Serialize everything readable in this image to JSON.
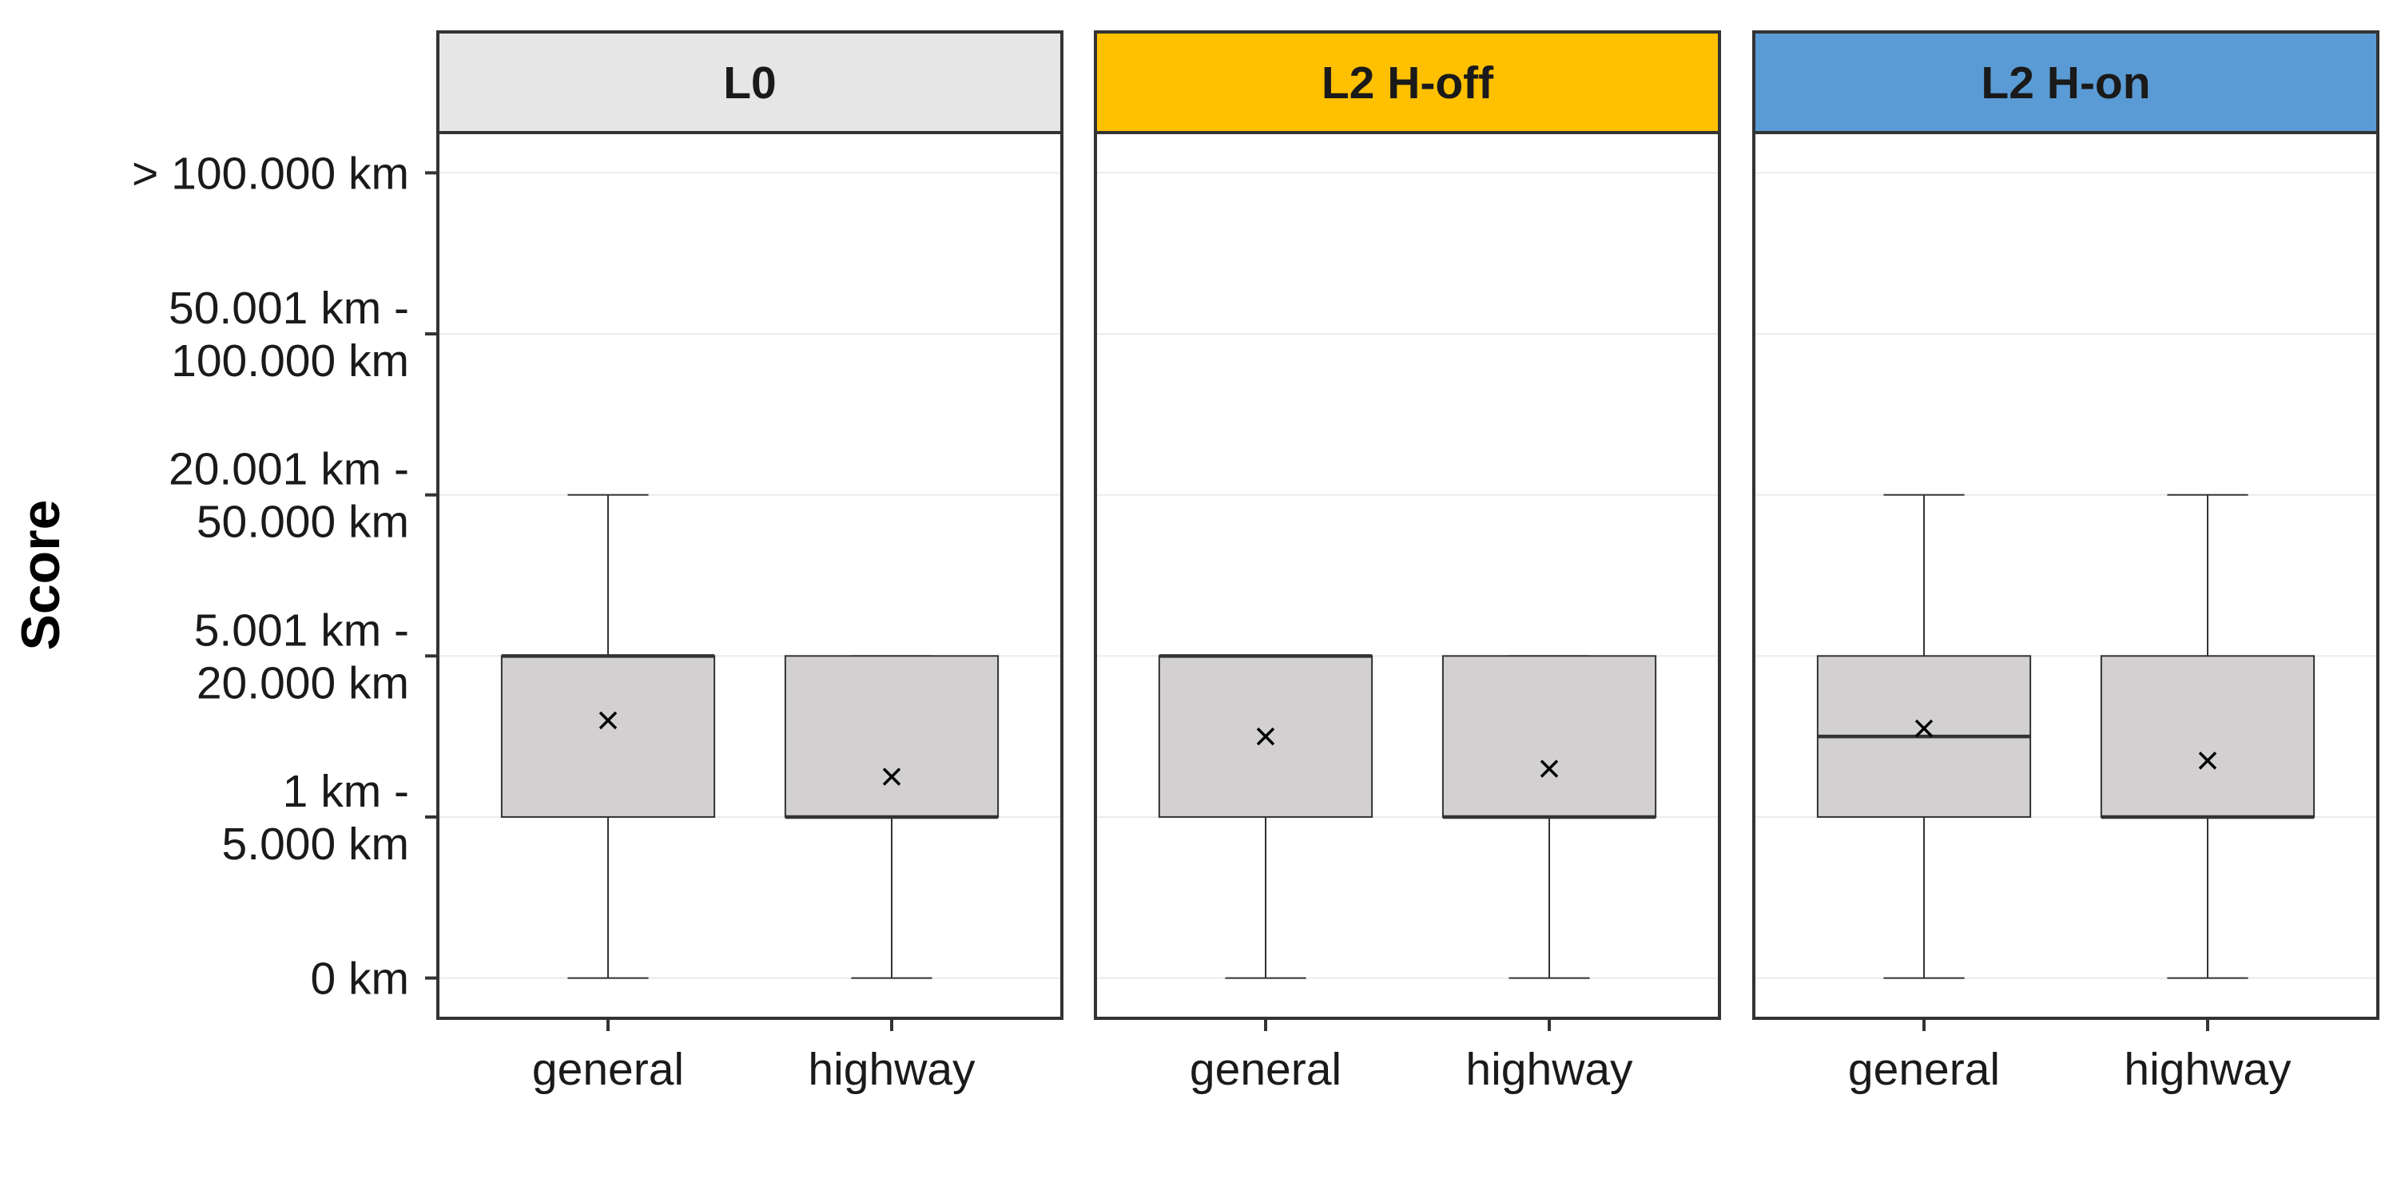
{
  "chart_data": {
    "type": "boxplot",
    "ylabel": "Score",
    "y_categories": [
      "0 km",
      "1 km - 5.000 km",
      "5.001 km - 20.000 km",
      "20.001 km - 50.000 km",
      "50.001 km - 100.000 km",
      "> 100.000 km"
    ],
    "y_tick_lines": [
      [
        "0 km"
      ],
      [
        "1 km -",
        "5.000 km"
      ],
      [
        "5.001 km -",
        "20.000 km"
      ],
      [
        "20.001 km -",
        "50.000 km"
      ],
      [
        "50.001 km -",
        "100.000 km"
      ],
      [
        "> 100.000 km"
      ]
    ],
    "ylim": [
      -0.25,
      5.25
    ],
    "grid": true,
    "categories": [
      "general",
      "highway"
    ],
    "panels": [
      {
        "name": "L0",
        "strip_color": "#e6e6e6",
        "boxes": [
          {
            "category": "general",
            "min": 0,
            "q1": 1,
            "median": 2,
            "q3": 2,
            "max": 3,
            "mean": 1.6
          },
          {
            "category": "highway",
            "min": 0,
            "q1": 1,
            "median": 1,
            "q3": 2,
            "max": 2,
            "mean": 1.25
          }
        ]
      },
      {
        "name": "L2 H-off",
        "strip_color": "#ffc000",
        "boxes": [
          {
            "category": "general",
            "min": 0,
            "q1": 1,
            "median": 2,
            "q3": 2,
            "max": 2,
            "mean": 1.5
          },
          {
            "category": "highway",
            "min": 0,
            "q1": 1,
            "median": 1,
            "q3": 2,
            "max": 2,
            "mean": 1.3
          }
        ]
      },
      {
        "name": "L2 H-on",
        "strip_color": "#5b9bd5",
        "boxes": [
          {
            "category": "general",
            "min": 0,
            "q1": 1,
            "median": 1.5,
            "q3": 2,
            "max": 3,
            "mean": 1.55
          },
          {
            "category": "highway",
            "min": 0,
            "q1": 1,
            "median": 1,
            "q3": 2,
            "max": 3,
            "mean": 1.35
          }
        ]
      }
    ],
    "box_fill": "#d2d0d1"
  }
}
